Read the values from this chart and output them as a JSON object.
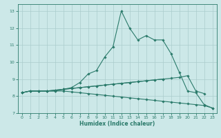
{
  "title": "",
  "xlabel": "Humidex (Indice chaleur)",
  "background_color": "#cce8e8",
  "grid_color": "#aacccc",
  "line_color": "#2a7a6a",
  "xlim": [
    -0.5,
    23.5
  ],
  "ylim": [
    7.0,
    13.4
  ],
  "x_ticks": [
    0,
    1,
    2,
    3,
    4,
    5,
    6,
    7,
    8,
    9,
    10,
    11,
    12,
    13,
    14,
    15,
    16,
    17,
    18,
    19,
    20,
    21,
    22,
    23
  ],
  "y_ticks": [
    7,
    8,
    9,
    10,
    11,
    12,
    13
  ],
  "series": [
    {
      "data": [
        [
          0,
          8.2
        ],
        [
          1,
          8.3
        ],
        [
          2,
          8.3
        ],
        [
          3,
          8.3
        ],
        [
          4,
          8.3
        ],
        [
          5,
          8.4
        ],
        [
          6,
          8.5
        ],
        [
          7,
          8.8
        ],
        [
          8,
          9.3
        ],
        [
          9,
          9.5
        ],
        [
          10,
          10.3
        ],
        [
          11,
          10.9
        ],
        [
          12,
          13.0
        ],
        [
          13,
          12.0
        ],
        [
          14,
          11.3
        ],
        [
          15,
          11.55
        ],
        [
          16,
          11.3
        ],
        [
          17,
          11.3
        ],
        [
          18,
          10.5
        ],
        [
          19,
          9.4
        ],
        [
          20,
          8.3
        ],
        [
          21,
          8.2
        ],
        [
          22,
          7.5
        ],
        [
          23,
          7.3
        ]
      ]
    },
    {
      "data": [
        [
          0,
          8.2
        ],
        [
          1,
          8.3
        ],
        [
          2,
          8.3
        ],
        [
          3,
          8.3
        ],
        [
          4,
          8.35
        ],
        [
          5,
          8.4
        ],
        [
          6,
          8.45
        ],
        [
          7,
          8.5
        ],
        [
          8,
          8.55
        ],
        [
          9,
          8.6
        ],
        [
          10,
          8.65
        ],
        [
          11,
          8.7
        ],
        [
          12,
          8.75
        ],
        [
          13,
          8.8
        ],
        [
          14,
          8.85
        ],
        [
          15,
          8.9
        ],
        [
          16,
          8.95
        ],
        [
          17,
          9.0
        ],
        [
          18,
          9.05
        ],
        [
          19,
          9.1
        ],
        [
          20,
          9.2
        ],
        [
          21,
          8.3
        ],
        [
          22,
          8.15
        ]
      ]
    },
    {
      "data": [
        [
          0,
          8.2
        ],
        [
          1,
          8.3
        ],
        [
          2,
          8.3
        ],
        [
          3,
          8.3
        ],
        [
          4,
          8.3
        ],
        [
          5,
          8.3
        ],
        [
          6,
          8.25
        ],
        [
          7,
          8.2
        ],
        [
          8,
          8.15
        ],
        [
          9,
          8.1
        ],
        [
          10,
          8.05
        ],
        [
          11,
          8.0
        ],
        [
          12,
          7.95
        ],
        [
          13,
          7.9
        ],
        [
          14,
          7.85
        ],
        [
          15,
          7.8
        ],
        [
          16,
          7.75
        ],
        [
          17,
          7.7
        ],
        [
          18,
          7.65
        ],
        [
          19,
          7.6
        ],
        [
          20,
          7.55
        ],
        [
          21,
          7.5
        ],
        [
          22,
          7.45
        ],
        [
          23,
          7.3
        ]
      ]
    },
    {
      "data": [
        [
          0,
          8.2
        ],
        [
          1,
          8.3
        ],
        [
          2,
          8.3
        ],
        [
          3,
          8.3
        ],
        [
          4,
          8.35
        ],
        [
          5,
          8.4
        ],
        [
          6,
          8.45
        ],
        [
          7,
          8.5
        ],
        [
          8,
          8.55
        ],
        [
          9,
          8.6
        ],
        [
          10,
          8.65
        ],
        [
          11,
          8.7
        ],
        [
          12,
          8.75
        ],
        [
          13,
          8.8
        ],
        [
          14,
          8.85
        ],
        [
          15,
          8.9
        ],
        [
          16,
          8.95
        ],
        [
          17,
          9.0
        ]
      ]
    }
  ]
}
